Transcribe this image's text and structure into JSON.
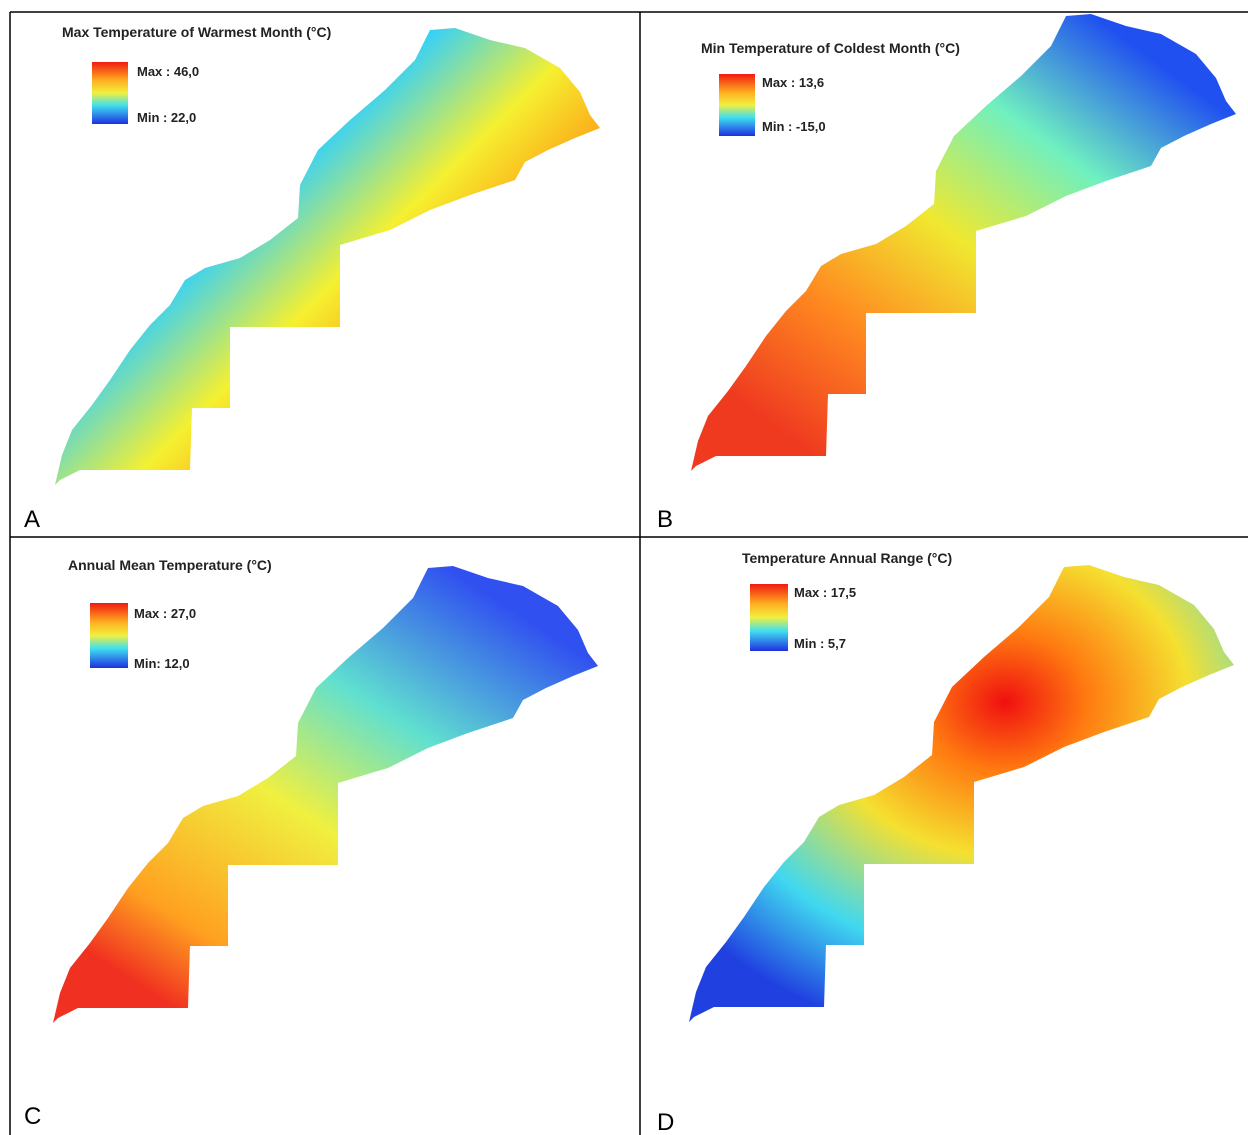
{
  "panels": [
    {
      "letter": "A",
      "title": "Max Temperature of Warmest Month (°C)",
      "legend_max": "Max : 46,0",
      "legend_min": "Min : 22,0"
    },
    {
      "letter": "B",
      "title": "Min Temperature of Coldest Month (°C)",
      "legend_max": "Max : 13,6",
      "legend_min": "Min : -15,0"
    },
    {
      "letter": "C",
      "title": "Annual Mean Temperature (°C)",
      "legend_max": "Max : 27,0",
      "legend_min": "Min: 12,0"
    },
    {
      "letter": "D",
      "title": "Temperature Annual Range (°C)",
      "legend_max": "Max : 17,5",
      "legend_min": "Min : 5,7"
    }
  ]
}
